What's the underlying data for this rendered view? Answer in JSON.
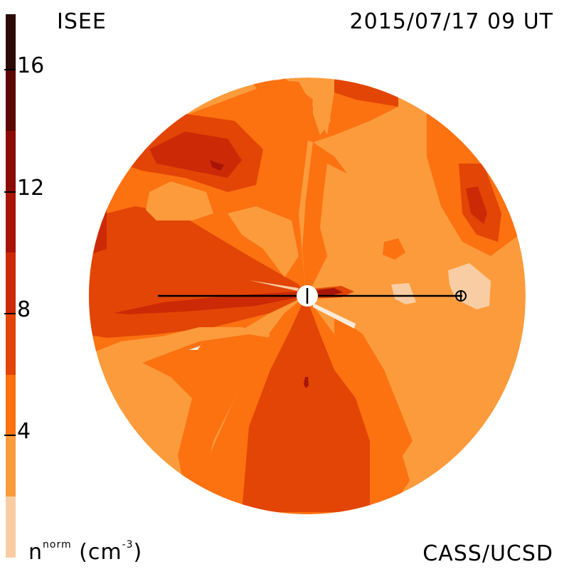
{
  "header": {
    "source": "ISEE",
    "timestamp": "2015/07/17 09 UT"
  },
  "footer": {
    "credit": "CASS/UCSD",
    "unit_symbol": "n",
    "unit_superscript": "norm",
    "unit_open": "(cm",
    "unit_exponent": "-3",
    "unit_close": ")"
  },
  "colorbar": {
    "tick_labels": [
      "16",
      "12",
      "8",
      "4"
    ],
    "levels": [
      {
        "range": [
          0,
          2
        ],
        "color": "#f9cda3"
      },
      {
        "range": [
          2,
          4
        ],
        "color": "#fb9b3c"
      },
      {
        "range": [
          4,
          6
        ],
        "color": "#fc7110"
      },
      {
        "range": [
          6,
          8
        ],
        "color": "#e24505"
      },
      {
        "range": [
          8,
          10
        ],
        "color": "#cc2a07"
      },
      {
        "range": [
          10,
          12
        ],
        "color": "#a81508"
      },
      {
        "range": [
          12,
          14
        ],
        "color": "#8c0b06"
      },
      {
        "range": [
          14,
          16
        ],
        "color": "#5c0805"
      },
      {
        "range": [
          16,
          18
        ],
        "color": "#2a0906"
      }
    ]
  }
}
